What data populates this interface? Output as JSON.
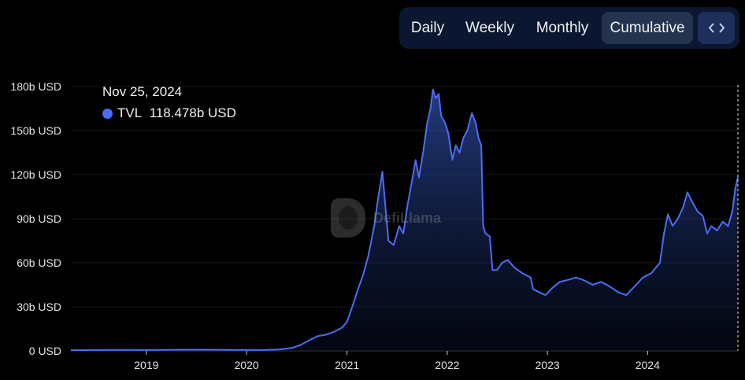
{
  "toolbar": {
    "buttons": [
      "Daily",
      "Weekly",
      "Monthly",
      "Cumulative"
    ],
    "active": "Cumulative",
    "embed_icon": "code-brackets-icon"
  },
  "tooltip": {
    "date": "Nov 25, 2024",
    "series": "TVL",
    "value": "118.478b USD"
  },
  "watermark": {
    "text": "DefiLlama"
  },
  "colors": {
    "line": "#4a6ef5",
    "background": "#000000",
    "grid": "#1a1a1a",
    "toggle_bg": "#0b1730",
    "toggle_active": "#24344f"
  },
  "chart_data": {
    "type": "area",
    "title": "",
    "xlabel": "",
    "ylabel": "",
    "ylim": [
      0,
      180
    ],
    "y_unit": "b USD",
    "yticks": [
      0,
      30,
      60,
      90,
      120,
      150,
      180
    ],
    "ytick_labels": [
      "0 USD",
      "30b USD",
      "60b USD",
      "90b USD",
      "120b USD",
      "150b USD",
      "180b USD"
    ],
    "xticks": [
      "2019",
      "2020",
      "2021",
      "2022",
      "2023",
      "2024"
    ],
    "x_range": [
      "2018-04-01",
      "2024-11-25"
    ],
    "series": [
      {
        "name": "TVL",
        "points": [
          [
            "2018-04-01",
            0.5
          ],
          [
            "2018-10-01",
            0.7
          ],
          [
            "2019-01-01",
            0.6
          ],
          [
            "2019-06-01",
            0.8
          ],
          [
            "2019-12-01",
            0.7
          ],
          [
            "2020-03-01",
            0.6
          ],
          [
            "2020-05-01",
            1.0
          ],
          [
            "2020-06-15",
            2.0
          ],
          [
            "2020-07-15",
            4.0
          ],
          [
            "2020-08-15",
            7.0
          ],
          [
            "2020-09-15",
            10.0
          ],
          [
            "2020-10-15",
            11.0
          ],
          [
            "2020-11-15",
            13.0
          ],
          [
            "2020-12-15",
            16.0
          ],
          [
            "2021-01-01",
            20.0
          ],
          [
            "2021-01-20",
            30.0
          ],
          [
            "2021-02-10",
            42.0
          ],
          [
            "2021-03-01",
            52.0
          ],
          [
            "2021-03-20",
            65.0
          ],
          [
            "2021-04-10",
            85.0
          ],
          [
            "2021-04-25",
            105.0
          ],
          [
            "2021-05-10",
            122.0
          ],
          [
            "2021-05-20",
            100.0
          ],
          [
            "2021-06-01",
            75.0
          ],
          [
            "2021-06-20",
            72.0
          ],
          [
            "2021-07-10",
            85.0
          ],
          [
            "2021-07-25",
            80.0
          ],
          [
            "2021-08-10",
            100.0
          ],
          [
            "2021-08-25",
            115.0
          ],
          [
            "2021-09-08",
            130.0
          ],
          [
            "2021-09-20",
            118.0
          ],
          [
            "2021-10-05",
            135.0
          ],
          [
            "2021-10-20",
            155.0
          ],
          [
            "2021-11-01",
            165.0
          ],
          [
            "2021-11-10",
            178.0
          ],
          [
            "2021-11-20",
            172.0
          ],
          [
            "2021-12-01",
            175.0
          ],
          [
            "2021-12-10",
            160.0
          ],
          [
            "2021-12-25",
            155.0
          ],
          [
            "2022-01-05",
            148.0
          ],
          [
            "2022-01-20",
            130.0
          ],
          [
            "2022-02-01",
            140.0
          ],
          [
            "2022-02-15",
            135.0
          ],
          [
            "2022-03-01",
            145.0
          ],
          [
            "2022-03-15",
            150.0
          ],
          [
            "2022-04-01",
            162.0
          ],
          [
            "2022-04-15",
            155.0
          ],
          [
            "2022-04-25",
            145.0
          ],
          [
            "2022-05-05",
            140.0
          ],
          [
            "2022-05-12",
            85.0
          ],
          [
            "2022-05-20",
            80.0
          ],
          [
            "2022-06-05",
            78.0
          ],
          [
            "2022-06-15",
            55.0
          ],
          [
            "2022-07-01",
            55.0
          ],
          [
            "2022-07-20",
            60.0
          ],
          [
            "2022-08-10",
            62.0
          ],
          [
            "2022-09-01",
            57.0
          ],
          [
            "2022-10-01",
            53.0
          ],
          [
            "2022-11-01",
            50.0
          ],
          [
            "2022-11-10",
            42.0
          ],
          [
            "2022-12-01",
            40.0
          ],
          [
            "2022-12-25",
            38.0
          ],
          [
            "2023-01-20",
            43.0
          ],
          [
            "2023-02-15",
            47.0
          ],
          [
            "2023-03-10",
            48.0
          ],
          [
            "2023-04-15",
            50.0
          ],
          [
            "2023-05-15",
            48.0
          ],
          [
            "2023-06-15",
            45.0
          ],
          [
            "2023-07-15",
            47.0
          ],
          [
            "2023-08-15",
            44.0
          ],
          [
            "2023-09-15",
            40.0
          ],
          [
            "2023-10-15",
            38.0
          ],
          [
            "2023-11-15",
            44.0
          ],
          [
            "2023-12-15",
            50.0
          ],
          [
            "2024-01-15",
            53.0
          ],
          [
            "2024-02-15",
            60.0
          ],
          [
            "2024-03-01",
            80.0
          ],
          [
            "2024-03-15",
            93.0
          ],
          [
            "2024-04-01",
            85.0
          ],
          [
            "2024-04-20",
            90.0
          ],
          [
            "2024-05-10",
            98.0
          ],
          [
            "2024-05-25",
            108.0
          ],
          [
            "2024-06-10",
            102.0
          ],
          [
            "2024-07-01",
            95.0
          ],
          [
            "2024-07-20",
            92.0
          ],
          [
            "2024-08-05",
            80.0
          ],
          [
            "2024-08-20",
            85.0
          ],
          [
            "2024-09-10",
            82.0
          ],
          [
            "2024-10-01",
            88.0
          ],
          [
            "2024-10-20",
            85.0
          ],
          [
            "2024-11-05",
            95.0
          ],
          [
            "2024-11-15",
            110.0
          ],
          [
            "2024-11-25",
            118.478
          ]
        ]
      }
    ],
    "grid": true,
    "crosshair_date": "2024-11-25"
  }
}
